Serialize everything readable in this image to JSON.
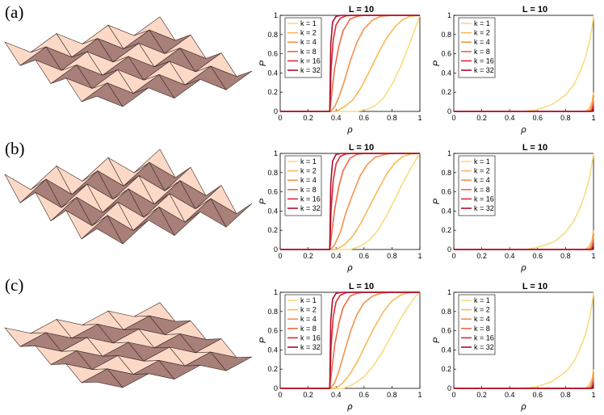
{
  "panel_labels": [
    "(a)",
    "(b)",
    "(c)"
  ],
  "colors": {
    "k1": "#fadb80",
    "k2": "#f8b957",
    "k4": "#f5934a",
    "k8": "#ed6a45",
    "k16": "#d92b33",
    "k32": "#a80f2e",
    "sheet_light": "#fcd9c6",
    "sheet_dark": "#a88079"
  },
  "chart_data": [
    {
      "row": "(a)",
      "side": "left",
      "type": "line",
      "title": "L = 10",
      "xlabel": "ρ",
      "ylabel": "P",
      "xlim": [
        0,
        1
      ],
      "ylim": [
        0,
        1
      ],
      "xticks": [
        "0",
        "0.2",
        "0.4",
        "0.6",
        "0.8",
        "1"
      ],
      "yticks": [
        "0",
        "0.2",
        "0.4",
        "0.6",
        "0.8",
        "1"
      ],
      "legend_position": "top-left",
      "series": [
        {
          "name": "k = 1",
          "x": [
            0,
            0.55,
            0.62,
            0.68,
            0.74,
            0.8,
            0.86,
            0.92,
            0.97,
            1
          ],
          "y": [
            0,
            0,
            0.02,
            0.06,
            0.14,
            0.28,
            0.46,
            0.68,
            0.88,
            1
          ]
        },
        {
          "name": "k = 2",
          "x": [
            0,
            0.4,
            0.46,
            0.52,
            0.58,
            0.64,
            0.7,
            0.76,
            0.82,
            0.88,
            0.93,
            1
          ],
          "y": [
            0,
            0,
            0.05,
            0.12,
            0.25,
            0.42,
            0.6,
            0.76,
            0.88,
            0.96,
            0.99,
            1
          ]
        },
        {
          "name": "k = 4",
          "x": [
            0,
            0.36,
            0.39,
            0.42,
            0.46,
            0.5,
            0.55,
            0.6,
            0.66,
            0.72,
            0.8,
            1
          ],
          "y": [
            0,
            0,
            0.05,
            0.15,
            0.32,
            0.52,
            0.72,
            0.86,
            0.95,
            0.99,
            1,
            1
          ]
        },
        {
          "name": "k = 8",
          "x": [
            0,
            0.355,
            0.37,
            0.39,
            0.42,
            0.45,
            0.5,
            0.55,
            0.6,
            1
          ],
          "y": [
            0,
            0,
            0.2,
            0.45,
            0.68,
            0.84,
            0.96,
            0.99,
            1,
            1
          ]
        },
        {
          "name": "k = 16",
          "x": [
            0,
            0.355,
            0.365,
            0.38,
            0.4,
            0.43,
            0.47,
            0.52,
            1
          ],
          "y": [
            0,
            0,
            0.45,
            0.75,
            0.9,
            0.97,
            0.995,
            1,
            1
          ]
        },
        {
          "name": "k = 32",
          "x": [
            0,
            0.355,
            0.362,
            0.375,
            0.4,
            0.44,
            1
          ],
          "y": [
            0,
            0,
            0.7,
            0.93,
            0.99,
            1,
            1
          ]
        }
      ]
    },
    {
      "row": "(a)",
      "side": "right",
      "type": "line",
      "title": "L = 10",
      "xlabel": "ρ",
      "ylabel": "P",
      "xlim": [
        0,
        1
      ],
      "ylim": [
        0,
        1
      ],
      "xticks": [
        "0",
        "0.2",
        "0.4",
        "0.6",
        "0.8",
        "1"
      ],
      "yticks": [
        "0",
        "0.2",
        "0.4",
        "0.6",
        "0.8",
        "1"
      ],
      "legend_position": "top-left",
      "series": [
        {
          "name": "k = 1",
          "x": [
            0,
            0.5,
            0.6,
            0.7,
            0.8,
            0.86,
            0.9,
            0.94,
            0.97,
            0.99,
            1
          ],
          "y": [
            0,
            0,
            0.02,
            0.07,
            0.17,
            0.28,
            0.4,
            0.55,
            0.72,
            0.88,
            1
          ]
        },
        {
          "name": "k = 2",
          "x": [
            0,
            0.94,
            0.97,
            0.99,
            1
          ],
          "y": [
            0,
            0,
            0.03,
            0.1,
            0.2
          ]
        },
        {
          "name": "k = 4",
          "x": [
            0,
            0.96,
            0.98,
            0.995,
            1
          ],
          "y": [
            0,
            0,
            0.02,
            0.08,
            0.15
          ]
        },
        {
          "name": "k = 8",
          "x": [
            0,
            0.97,
            0.99,
            1
          ],
          "y": [
            0,
            0,
            0.03,
            0.1
          ]
        },
        {
          "name": "k = 16",
          "x": [
            0,
            0.985,
            0.995,
            1
          ],
          "y": [
            0,
            0,
            0.02,
            0.06
          ]
        },
        {
          "name": "k = 32",
          "x": [
            0,
            0.99,
            1
          ],
          "y": [
            0,
            0,
            0.04
          ]
        }
      ]
    },
    {
      "row": "(b)",
      "side": "left",
      "type": "line",
      "title": "L = 10",
      "xlabel": "ρ",
      "ylabel": "P",
      "xlim": [
        0,
        1
      ],
      "ylim": [
        0,
        1
      ],
      "xticks": [
        "0",
        "0.2",
        "0.4",
        "0.6",
        "0.8",
        "1"
      ],
      "yticks": [
        "0",
        "0.2",
        "0.4",
        "0.6",
        "0.8",
        "1"
      ],
      "legend_position": "top-left",
      "series": [
        {
          "name": "k = 1",
          "x": [
            0,
            0.5,
            0.57,
            0.64,
            0.7,
            0.76,
            0.82,
            0.88,
            0.94,
            1
          ],
          "y": [
            0,
            0,
            0.03,
            0.1,
            0.2,
            0.35,
            0.52,
            0.7,
            0.86,
            1
          ]
        },
        {
          "name": "k = 2",
          "x": [
            0,
            0.4,
            0.46,
            0.52,
            0.58,
            0.64,
            0.7,
            0.76,
            0.82,
            0.88,
            0.94,
            1
          ],
          "y": [
            0,
            0,
            0.05,
            0.14,
            0.28,
            0.45,
            0.62,
            0.78,
            0.9,
            0.97,
            0.995,
            1
          ]
        },
        {
          "name": "k = 4",
          "x": [
            0,
            0.36,
            0.39,
            0.43,
            0.47,
            0.52,
            0.57,
            0.62,
            0.68,
            0.75,
            0.8,
            1
          ],
          "y": [
            0,
            0,
            0.05,
            0.18,
            0.38,
            0.58,
            0.76,
            0.88,
            0.96,
            0.99,
            1,
            1
          ]
        },
        {
          "name": "k = 8",
          "x": [
            0,
            0.355,
            0.37,
            0.39,
            0.42,
            0.45,
            0.5,
            0.55,
            0.6,
            1
          ],
          "y": [
            0,
            0,
            0.18,
            0.42,
            0.66,
            0.82,
            0.95,
            0.99,
            1,
            1
          ]
        },
        {
          "name": "k = 16",
          "x": [
            0,
            0.355,
            0.365,
            0.38,
            0.4,
            0.43,
            0.47,
            0.52,
            1
          ],
          "y": [
            0,
            0,
            0.42,
            0.72,
            0.89,
            0.97,
            0.995,
            1,
            1
          ]
        },
        {
          "name": "k = 32",
          "x": [
            0,
            0.355,
            0.362,
            0.375,
            0.4,
            0.44,
            1
          ],
          "y": [
            0,
            0,
            0.68,
            0.92,
            0.99,
            1,
            1
          ]
        }
      ]
    },
    {
      "row": "(b)",
      "side": "right",
      "type": "line",
      "title": "L = 10",
      "xlabel": "ρ",
      "ylabel": "P",
      "xlim": [
        0,
        1
      ],
      "ylim": [
        0,
        1
      ],
      "xticks": [
        "0",
        "0.2",
        "0.4",
        "0.6",
        "0.8",
        "1"
      ],
      "yticks": [
        "0",
        "0.2",
        "0.4",
        "0.6",
        "0.8",
        "1"
      ],
      "legend_position": "top-left",
      "series": [
        {
          "name": "k = 1",
          "x": [
            0,
            0.52,
            0.62,
            0.72,
            0.8,
            0.86,
            0.9,
            0.94,
            0.97,
            0.99,
            1
          ],
          "y": [
            0,
            0,
            0.03,
            0.08,
            0.18,
            0.3,
            0.42,
            0.58,
            0.74,
            0.9,
            1
          ]
        },
        {
          "name": "k = 2",
          "x": [
            0,
            0.94,
            0.97,
            0.99,
            1
          ],
          "y": [
            0,
            0,
            0.03,
            0.1,
            0.2
          ]
        },
        {
          "name": "k = 4",
          "x": [
            0,
            0.96,
            0.98,
            0.995,
            1
          ],
          "y": [
            0,
            0,
            0.02,
            0.08,
            0.15
          ]
        },
        {
          "name": "k = 8",
          "x": [
            0,
            0.97,
            0.99,
            1
          ],
          "y": [
            0,
            0,
            0.03,
            0.1
          ]
        },
        {
          "name": "k = 16",
          "x": [
            0,
            0.985,
            0.995,
            1
          ],
          "y": [
            0,
            0,
            0.02,
            0.06
          ]
        },
        {
          "name": "k = 32",
          "x": [
            0,
            0.99,
            1
          ],
          "y": [
            0,
            0,
            0.04
          ]
        }
      ]
    },
    {
      "row": "(c)",
      "side": "left",
      "type": "line",
      "title": "L = 10",
      "xlabel": "ρ",
      "ylabel": "P",
      "xlim": [
        0,
        1
      ],
      "ylim": [
        0,
        1
      ],
      "xticks": [
        "0",
        "0.2",
        "0.4",
        "0.6",
        "0.8",
        "1"
      ],
      "yticks": [
        "0",
        "0.2",
        "0.4",
        "0.6",
        "0.8",
        "1"
      ],
      "legend_position": "top-left",
      "series": [
        {
          "name": "k = 1",
          "x": [
            0,
            0.45,
            0.52,
            0.6,
            0.67,
            0.74,
            0.8,
            0.86,
            0.92,
            0.97,
            1
          ],
          "y": [
            0,
            0,
            0.04,
            0.12,
            0.24,
            0.4,
            0.56,
            0.72,
            0.86,
            0.96,
            1
          ]
        },
        {
          "name": "k = 2",
          "x": [
            0,
            0.4,
            0.45,
            0.5,
            0.56,
            0.62,
            0.68,
            0.74,
            0.8,
            0.86,
            0.92,
            1
          ],
          "y": [
            0,
            0,
            0.06,
            0.15,
            0.3,
            0.48,
            0.65,
            0.8,
            0.91,
            0.97,
            0.995,
            1
          ]
        },
        {
          "name": "k = 4",
          "x": [
            0,
            0.36,
            0.39,
            0.42,
            0.46,
            0.5,
            0.55,
            0.6,
            0.66,
            0.72,
            0.8,
            1
          ],
          "y": [
            0,
            0,
            0.06,
            0.18,
            0.38,
            0.58,
            0.77,
            0.89,
            0.96,
            0.99,
            1,
            1
          ]
        },
        {
          "name": "k = 8",
          "x": [
            0,
            0.355,
            0.37,
            0.39,
            0.42,
            0.45,
            0.5,
            0.55,
            0.6,
            1
          ],
          "y": [
            0,
            0,
            0.2,
            0.45,
            0.68,
            0.84,
            0.96,
            0.99,
            1,
            1
          ]
        },
        {
          "name": "k = 16",
          "x": [
            0,
            0.355,
            0.365,
            0.38,
            0.4,
            0.43,
            0.47,
            0.52,
            1
          ],
          "y": [
            0,
            0,
            0.45,
            0.75,
            0.9,
            0.97,
            0.995,
            1,
            1
          ]
        },
        {
          "name": "k = 32",
          "x": [
            0,
            0.355,
            0.362,
            0.375,
            0.4,
            0.44,
            1
          ],
          "y": [
            0,
            0,
            0.7,
            0.93,
            0.99,
            1,
            1
          ]
        }
      ]
    },
    {
      "row": "(c)",
      "side": "right",
      "type": "line",
      "title": "L = 10",
      "xlabel": "ρ",
      "ylabel": "P",
      "xlim": [
        0,
        1
      ],
      "ylim": [
        0,
        1
      ],
      "xticks": [
        "0",
        "0.2",
        "0.4",
        "0.6",
        "0.8",
        "1"
      ],
      "yticks": [
        "0",
        "0.2",
        "0.4",
        "0.6",
        "0.8",
        "1"
      ],
      "legend_position": "top-left",
      "series": [
        {
          "name": "k = 1",
          "x": [
            0,
            0.5,
            0.6,
            0.7,
            0.8,
            0.86,
            0.9,
            0.94,
            0.97,
            0.99,
            1
          ],
          "y": [
            0,
            0,
            0.02,
            0.07,
            0.17,
            0.28,
            0.4,
            0.55,
            0.72,
            0.88,
            1
          ]
        },
        {
          "name": "k = 2",
          "x": [
            0,
            0.94,
            0.97,
            0.99,
            1
          ],
          "y": [
            0,
            0,
            0.03,
            0.1,
            0.2
          ]
        },
        {
          "name": "k = 4",
          "x": [
            0,
            0.96,
            0.98,
            0.995,
            1
          ],
          "y": [
            0,
            0,
            0.02,
            0.08,
            0.15
          ]
        },
        {
          "name": "k = 8",
          "x": [
            0,
            0.97,
            0.99,
            1
          ],
          "y": [
            0,
            0,
            0.03,
            0.1
          ]
        },
        {
          "name": "k = 16",
          "x": [
            0,
            0.985,
            0.995,
            1
          ],
          "y": [
            0,
            0,
            0.02,
            0.06
          ]
        },
        {
          "name": "k = 32",
          "x": [
            0,
            0.99,
            1
          ],
          "y": [
            0,
            0,
            0.04
          ]
        }
      ]
    }
  ]
}
